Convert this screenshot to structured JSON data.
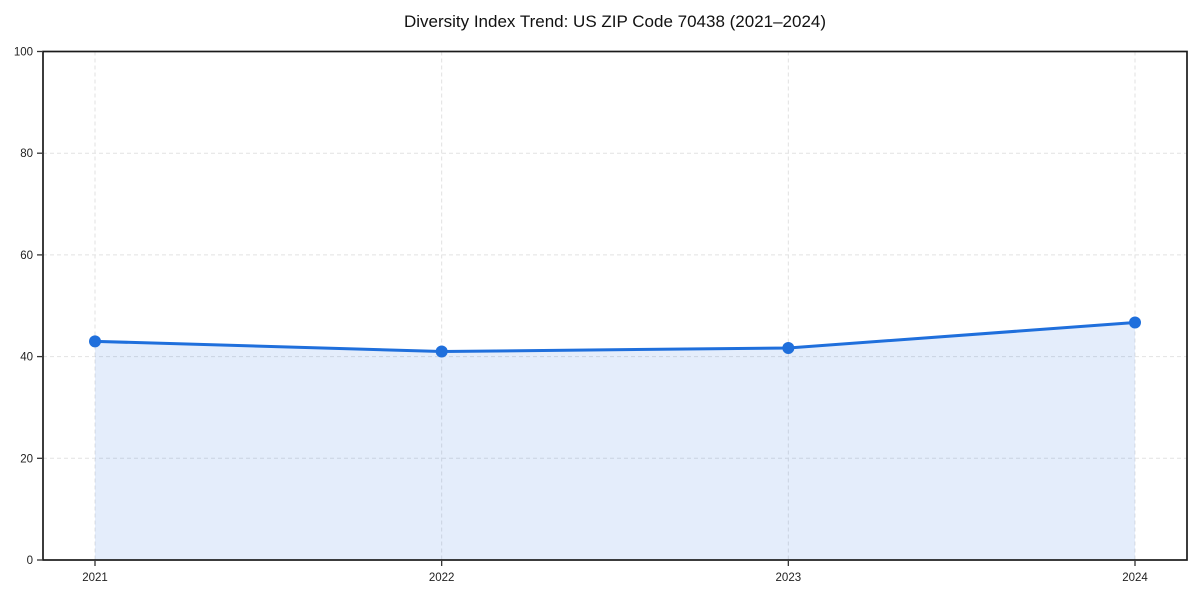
{
  "chart_data": {
    "type": "area",
    "title": "Diversity Index Trend: US ZIP Code 70438 (2021–2024)",
    "categories": [
      "2021",
      "2022",
      "2023",
      "2024"
    ],
    "series": [
      {
        "name": "Diversity Index",
        "values": [
          43.0,
          41.0,
          41.7,
          46.7
        ]
      }
    ],
    "xlabel": "",
    "ylabel": "",
    "ylim": [
      0,
      100
    ],
    "yticks": [
      0,
      20,
      40,
      60,
      80,
      100
    ],
    "grid": true,
    "grid_style": "dashed",
    "legend": false,
    "marker": "circle",
    "colors": {
      "line": "#1f6fdc",
      "marker": "#1f6fdc",
      "fill": "rgba(31,111,220,0.12)",
      "grid": "#e2e2e2",
      "axis": "#1a1a1a",
      "tick": "#333333",
      "tick_label": "#222222",
      "title": "#111111",
      "background": "#ffffff"
    }
  }
}
